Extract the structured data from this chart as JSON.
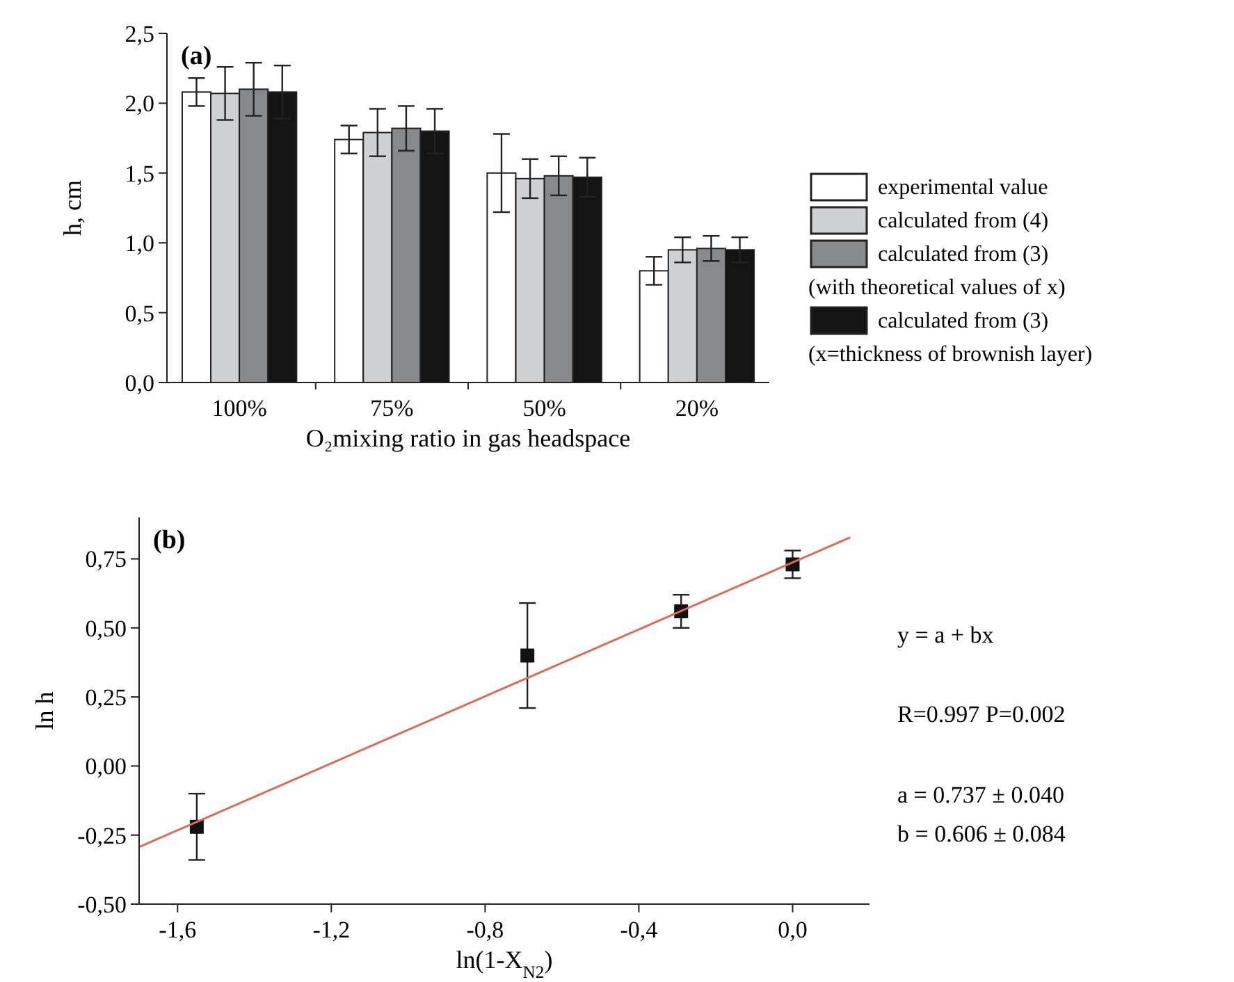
{
  "chart_data": [
    {
      "type": "bar",
      "categories": [
        "100%",
        "75%",
        "50%",
        "20%"
      ],
      "series": [
        {
          "name": "experimental value",
          "color": "#ffffff",
          "values": [
            2.08,
            1.74,
            1.5,
            0.8
          ],
          "errors": [
            0.1,
            0.1,
            0.28,
            0.1
          ]
        },
        {
          "name": "calculated from (4)",
          "color": "#cfd0d2",
          "values": [
            2.07,
            1.79,
            1.46,
            0.95
          ],
          "errors": [
            0.19,
            0.17,
            0.14,
            0.09
          ]
        },
        {
          "name": "calculated from (3)\n(with theoretical values of x)",
          "color": "#87898b",
          "values": [
            2.1,
            1.82,
            1.48,
            0.96
          ],
          "errors": [
            0.19,
            0.16,
            0.14,
            0.09
          ]
        },
        {
          "name": "calculated from (3)\n(x=thickness of brownish layer)",
          "color": "#141414",
          "values": [
            2.08,
            1.8,
            1.47,
            0.95
          ],
          "errors": [
            0.19,
            0.16,
            0.14,
            0.09
          ]
        }
      ],
      "ylim": [
        0,
        2.5
      ],
      "yticks": [
        {
          "value": 0,
          "label": "0,0"
        },
        {
          "value": 0.5,
          "label": "0,5"
        },
        {
          "value": 1,
          "label": "1,0"
        },
        {
          "value": 1.5,
          "label": "1,5"
        },
        {
          "value": 2,
          "label": "2,0"
        },
        {
          "value": 2.5,
          "label": "2,5"
        }
      ],
      "xlabel": "O₂mixing ratio in gas headspace",
      "ylabel": "h, cm",
      "annotations": [
        "(a)"
      ],
      "legend": "right"
    },
    {
      "type": "scatter",
      "series": [
        {
          "color": "#111111",
          "marker": "square",
          "x": [
            -1.55,
            -0.69,
            -0.29,
            0.0
          ],
          "values": [
            -0.22,
            0.4,
            0.56,
            0.73
          ],
          "errors": [
            0.12,
            0.19,
            0.06,
            0.05
          ]
        },
        {
          "type": "line",
          "color": "#e06a58",
          "x": [
            -1.7,
            0.15
          ],
          "values": [
            -0.293,
            0.828
          ]
        }
      ],
      "xlim": [
        -1.7,
        0.2
      ],
      "xticks": [
        {
          "value": -1.6,
          "label": "-1,6"
        },
        {
          "value": -1.2,
          "label": "-1,2"
        },
        {
          "value": -0.8,
          "label": "-0,8"
        },
        {
          "value": -0.4,
          "label": "-0,4"
        },
        {
          "value": 0,
          "label": "0,0"
        }
      ],
      "ylim": [
        -0.5,
        0.9
      ],
      "yticks": [
        {
          "value": -0.5,
          "label": "-0,50"
        },
        {
          "value": -0.25,
          "label": "-0,25"
        },
        {
          "value": 0,
          "label": "0,00"
        },
        {
          "value": 0.25,
          "label": "0,25"
        },
        {
          "value": 0.5,
          "label": "0,50"
        },
        {
          "value": 0.75,
          "label": "0,75"
        }
      ],
      "xlabel": "ln(1-X$_{N2}$)",
      "ylabel": "ln h",
      "annotations": [
        "(b)",
        "y = a + bx",
        "R=0.997    P=0.002",
        "a = 0.737 ±  0.040",
        "b = 0.606 ±  0.084"
      ]
    }
  ]
}
